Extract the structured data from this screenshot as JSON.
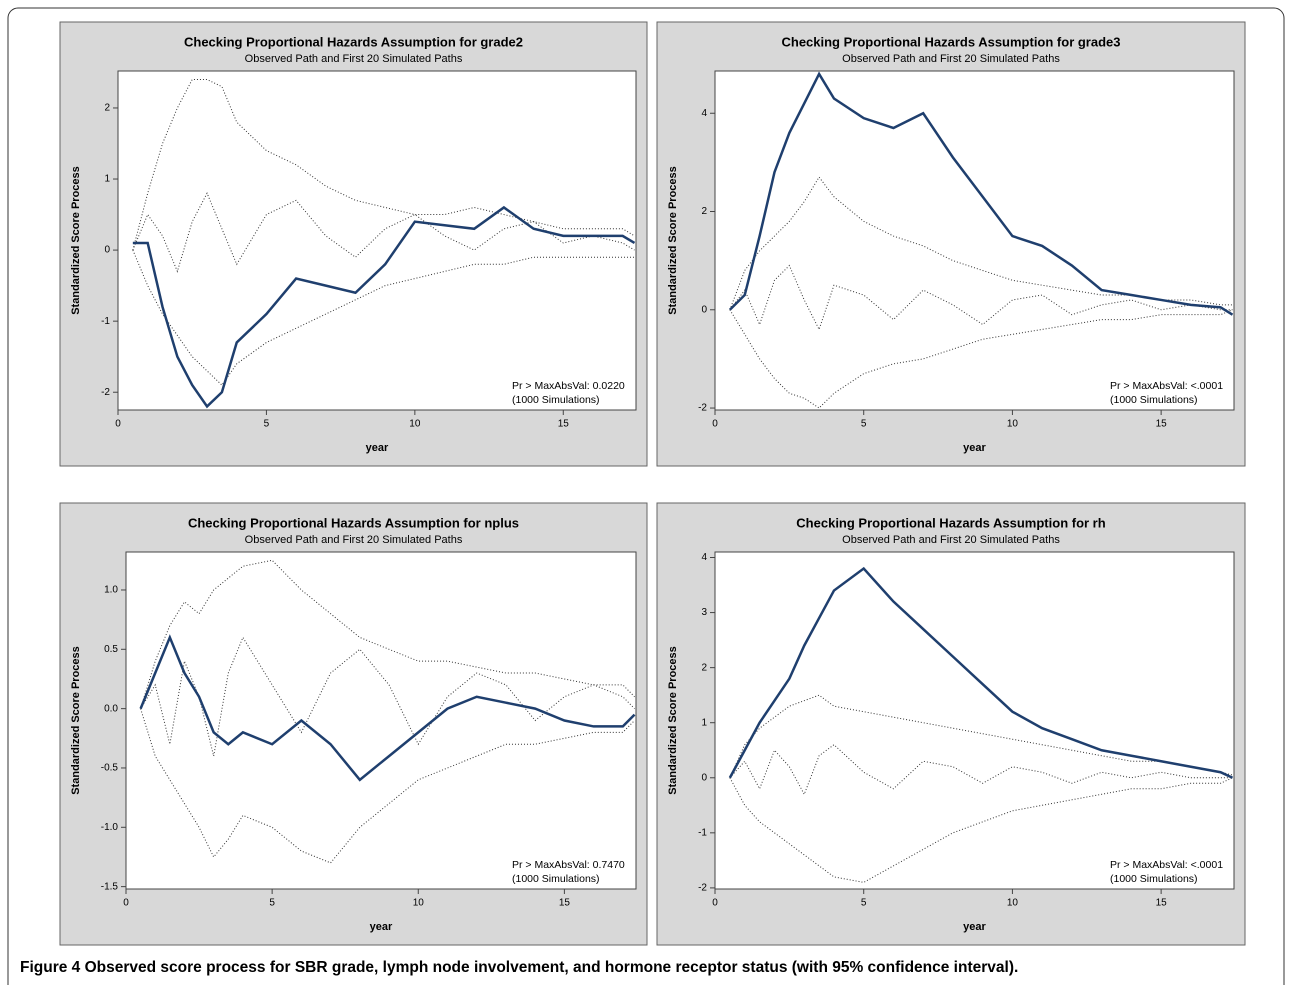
{
  "chart_data": [
    {
      "type": "line",
      "title": "Checking Proportional Hazards Assumption for grade2",
      "subtitle": "Observed Path and First 20 Simulated Paths",
      "x_label": "year",
      "y_label": "Standardized Score Process",
      "annotations": [
        "Pr > MaxAbsVal: 0.0220",
        "(1000 Simulations)"
      ],
      "x": [
        0.5,
        1,
        1.5,
        2,
        2.5,
        3,
        3.5,
        4,
        5,
        6,
        7,
        8,
        9,
        10,
        11,
        12,
        13,
        14,
        15,
        16,
        17,
        17.4
      ],
      "series": [
        {
          "color": "#333333",
          "style": "dotted",
          "values": [
            0,
            0.8,
            1.5,
            2.0,
            2.4,
            2.4,
            2.3,
            1.8,
            1.4,
            1.2,
            0.9,
            0.7,
            0.6,
            0.5,
            0.5,
            0.6,
            0.5,
            0.4,
            0.3,
            0.3,
            0.3,
            0.2
          ]
        },
        {
          "color": "#333333",
          "style": "dotted",
          "values": [
            0,
            -0.5,
            -0.9,
            -1.2,
            -1.5,
            -1.7,
            -1.9,
            -1.6,
            -1.3,
            -1.1,
            -0.9,
            -0.7,
            -0.5,
            -0.4,
            -0.3,
            -0.2,
            -0.2,
            -0.1,
            -0.1,
            -0.1,
            -0.1,
            -0.1
          ]
        },
        {
          "color": "#333333",
          "style": "dotted",
          "values": [
            0,
            0.5,
            0.2,
            -0.3,
            0.4,
            0.8,
            0.3,
            -0.2,
            0.5,
            0.7,
            0.2,
            -0.1,
            0.3,
            0.5,
            0.2,
            0.0,
            0.3,
            0.4,
            0.1,
            0.2,
            0.1,
            0.0
          ]
        },
        {
          "color": "#1f3f6e",
          "style": "solid",
          "values": [
            0.1,
            0.1,
            -0.8,
            -1.5,
            -1.9,
            -2.2,
            -2.0,
            -1.3,
            -0.9,
            -0.4,
            -0.5,
            -0.6,
            -0.2,
            0.4,
            0.35,
            0.3,
            0.6,
            0.3,
            0.2,
            0.2,
            0.2,
            0.1
          ]
        }
      ],
      "xlim": [
        0,
        17.45
      ],
      "xticks": [
        0,
        5,
        10,
        15
      ],
      "ylim": [
        -2.25,
        2.52
      ],
      "yticks": [
        -2,
        -1,
        0,
        1,
        2
      ]
    },
    {
      "type": "line",
      "title": "Checking Proportional Hazards Assumption for grade3",
      "subtitle": "Observed Path and First 20 Simulated Paths",
      "x_label": "year",
      "y_label": "Standardized Score Process",
      "annotations": [
        "Pr > MaxAbsVal: <.0001",
        "(1000 Simulations)"
      ],
      "x": [
        0.5,
        1,
        1.5,
        2,
        2.5,
        3,
        3.5,
        4,
        5,
        6,
        7,
        8,
        9,
        10,
        11,
        12,
        13,
        14,
        15,
        16,
        17,
        17.4
      ],
      "series": [
        {
          "color": "#333333",
          "style": "dotted",
          "values": [
            0,
            0.8,
            1.2,
            1.5,
            1.8,
            2.2,
            2.7,
            2.3,
            1.8,
            1.5,
            1.3,
            1.0,
            0.8,
            0.6,
            0.5,
            0.4,
            0.3,
            0.3,
            0.2,
            0.2,
            0.1,
            0.1
          ]
        },
        {
          "color": "#333333",
          "style": "dotted",
          "values": [
            0,
            -0.5,
            -1.0,
            -1.4,
            -1.7,
            -1.8,
            -2.0,
            -1.7,
            -1.3,
            -1.1,
            -1.0,
            -0.8,
            -0.6,
            -0.5,
            -0.4,
            -0.3,
            -0.2,
            -0.2,
            -0.1,
            -0.1,
            -0.1,
            0
          ]
        },
        {
          "color": "#333333",
          "style": "dotted",
          "values": [
            0,
            0.4,
            -0.3,
            0.6,
            0.9,
            0.2,
            -0.4,
            0.5,
            0.3,
            -0.2,
            0.4,
            0.1,
            -0.3,
            0.2,
            0.3,
            -0.1,
            0.1,
            0.2,
            0,
            0.1,
            0,
            0
          ]
        },
        {
          "color": "#1f3f6e",
          "style": "solid",
          "values": [
            0,
            0.3,
            1.5,
            2.8,
            3.6,
            4.2,
            4.8,
            4.3,
            3.9,
            3.7,
            4.0,
            3.1,
            2.3,
            1.5,
            1.3,
            0.9,
            0.4,
            0.3,
            0.2,
            0.1,
            0.05,
            -0.1
          ]
        }
      ],
      "xlim": [
        0,
        17.45
      ],
      "xticks": [
        0,
        5,
        10,
        15
      ],
      "ylim": [
        -2.04,
        4.86
      ],
      "yticks": [
        -2,
        0,
        2,
        4
      ]
    },
    {
      "type": "line",
      "title": "Checking Proportional Hazards Assumption for nplus",
      "subtitle": "Observed Path and First 20 Simulated Paths",
      "x_label": "year",
      "y_label": "Standardized Score Process",
      "annotations": [
        "Pr > MaxAbsVal: 0.7470",
        "(1000 Simulations)"
      ],
      "x": [
        0.5,
        1,
        1.5,
        2,
        2.5,
        3,
        3.5,
        4,
        5,
        6,
        7,
        8,
        9,
        10,
        11,
        12,
        13,
        14,
        15,
        16,
        17,
        17.4
      ],
      "series": [
        {
          "color": "#333333",
          "style": "dotted",
          "values": [
            0,
            0.4,
            0.7,
            0.9,
            0.8,
            1.0,
            1.1,
            1.2,
            1.25,
            1.0,
            0.8,
            0.6,
            0.5,
            0.4,
            0.4,
            0.35,
            0.3,
            0.3,
            0.25,
            0.2,
            0.2,
            0.1
          ]
        },
        {
          "color": "#333333",
          "style": "dotted",
          "values": [
            0,
            -0.4,
            -0.6,
            -0.8,
            -1.0,
            -1.25,
            -1.1,
            -0.9,
            -1.0,
            -1.2,
            -1.3,
            -1.0,
            -0.8,
            -0.6,
            -0.5,
            -0.4,
            -0.3,
            -0.3,
            -0.25,
            -0.2,
            -0.2,
            -0.1
          ]
        },
        {
          "color": "#333333",
          "style": "dotted",
          "values": [
            0,
            0.2,
            -0.3,
            0.4,
            0.1,
            -0.4,
            0.3,
            0.6,
            0.2,
            -0.2,
            0.3,
            0.5,
            0.2,
            -0.3,
            0.1,
            0.3,
            0.2,
            -0.1,
            0.1,
            0.2,
            0.1,
            0
          ]
        },
        {
          "color": "#1f3f6e",
          "style": "solid",
          "values": [
            0,
            0.3,
            0.6,
            0.3,
            0.1,
            -0.2,
            -0.3,
            -0.2,
            -0.3,
            -0.1,
            -0.3,
            -0.6,
            -0.4,
            -0.2,
            0.0,
            0.1,
            0.05,
            0.0,
            -0.1,
            -0.15,
            -0.15,
            -0.05
          ]
        }
      ],
      "xlim": [
        0,
        17.45
      ],
      "xticks": [
        0,
        5,
        10,
        15
      ],
      "ylim": [
        -1.52,
        1.32
      ],
      "yticks": [
        {
          "value": -1.5,
          "label": "-1.5"
        },
        {
          "value": -1,
          "label": "-1.0"
        },
        {
          "value": -0.5,
          "label": "-0.5"
        },
        {
          "value": 0,
          "label": "0.0"
        },
        {
          "value": 0.5,
          "label": "0.5"
        },
        {
          "value": 1,
          "label": "1.0"
        }
      ]
    },
    {
      "type": "line",
      "title": "Checking Proportional Hazards Assumption for rh",
      "subtitle": "Observed Path and First 20 Simulated Paths",
      "x_label": "year",
      "y_label": "Standardized Score Process",
      "annotations": [
        "Pr > MaxAbsVal: <.0001",
        "(1000 Simulations)"
      ],
      "x": [
        0.5,
        1,
        1.5,
        2,
        2.5,
        3,
        3.5,
        4,
        5,
        6,
        7,
        8,
        9,
        10,
        11,
        12,
        13,
        14,
        15,
        16,
        17,
        17.4
      ],
      "series": [
        {
          "color": "#333333",
          "style": "dotted",
          "values": [
            0,
            0.6,
            0.9,
            1.1,
            1.3,
            1.4,
            1.5,
            1.3,
            1.2,
            1.1,
            1.0,
            0.9,
            0.8,
            0.7,
            0.6,
            0.5,
            0.4,
            0.3,
            0.3,
            0.2,
            0.1,
            0.05
          ]
        },
        {
          "color": "#333333",
          "style": "dotted",
          "values": [
            0,
            -0.5,
            -0.8,
            -1.0,
            -1.2,
            -1.4,
            -1.6,
            -1.8,
            -1.9,
            -1.6,
            -1.3,
            -1.0,
            -0.8,
            -0.6,
            -0.5,
            -0.4,
            -0.3,
            -0.2,
            -0.2,
            -0.1,
            -0.1,
            0
          ]
        },
        {
          "color": "#333333",
          "style": "dotted",
          "values": [
            0,
            0.3,
            -0.2,
            0.5,
            0.2,
            -0.3,
            0.4,
            0.6,
            0.1,
            -0.2,
            0.3,
            0.2,
            -0.1,
            0.2,
            0.1,
            -0.1,
            0.1,
            0.0,
            0.1,
            0,
            0,
            0
          ]
        },
        {
          "color": "#1f3f6e",
          "style": "solid",
          "values": [
            0,
            0.5,
            1.0,
            1.4,
            1.8,
            2.4,
            2.9,
            3.4,
            3.8,
            3.2,
            2.7,
            2.2,
            1.7,
            1.2,
            0.9,
            0.7,
            0.5,
            0.4,
            0.3,
            0.2,
            0.1,
            0.0
          ]
        }
      ],
      "xlim": [
        0,
        17.45
      ],
      "xticks": [
        0,
        5,
        10,
        15
      ],
      "ylim": [
        -2.02,
        4.1
      ],
      "yticks": [
        -2,
        -1,
        0,
        1,
        2,
        3,
        4
      ]
    }
  ],
  "caption": {
    "label": "Figure 4",
    "text": "Observed score process for SBR grade, lymph node involvement, and hormone receptor status (with 95% confidence interval)."
  }
}
